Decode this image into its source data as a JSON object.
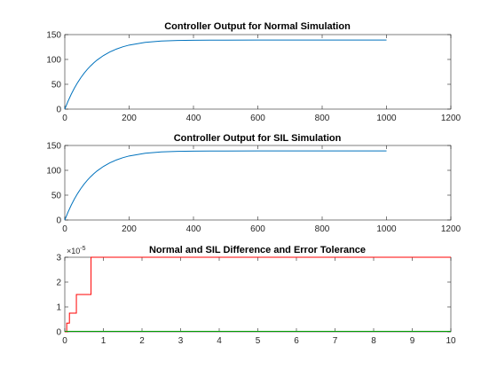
{
  "chart_data": [
    {
      "type": "line",
      "title": "Controller Output for Normal Simulation",
      "xlabel": "",
      "ylabel": "",
      "xlim": [
        0,
        1200
      ],
      "ylim": [
        0,
        150
      ],
      "xticks": [
        0,
        200,
        400,
        600,
        800,
        1000,
        1200
      ],
      "yticks": [
        0,
        50,
        100,
        150
      ],
      "grid": false,
      "series": [
        {
          "color": "#0072BD",
          "x": [
            0,
            10,
            20,
            30,
            40,
            50,
            60,
            70,
            80,
            90,
            100,
            120,
            140,
            160,
            180,
            200,
            250,
            300,
            350,
            400,
            450,
            500,
            600,
            700,
            800,
            900,
            1000
          ],
          "y": [
            0,
            15.8,
            29.9,
            42.4,
            53.5,
            63.4,
            72.2,
            80.0,
            86.9,
            93.1,
            98.6,
            107.8,
            115.0,
            120.8,
            125.3,
            128.9,
            134.4,
            137.0,
            138.1,
            138.6,
            138.8,
            138.9,
            139.0,
            139.0,
            139.0,
            139.0,
            139.0
          ]
        }
      ]
    },
    {
      "type": "line",
      "title": "Controller Output for SIL Simulation",
      "xlabel": "",
      "ylabel": "",
      "xlim": [
        0,
        1200
      ],
      "ylim": [
        0,
        150
      ],
      "xticks": [
        0,
        200,
        400,
        600,
        800,
        1000,
        1200
      ],
      "yticks": [
        0,
        50,
        100,
        150
      ],
      "grid": false,
      "series": [
        {
          "color": "#0072BD",
          "x": [
            0,
            10,
            20,
            30,
            40,
            50,
            60,
            70,
            80,
            90,
            100,
            120,
            140,
            160,
            180,
            200,
            250,
            300,
            350,
            400,
            450,
            500,
            600,
            700,
            800,
            900,
            1000
          ],
          "y": [
            0,
            15.8,
            29.9,
            42.4,
            53.5,
            63.4,
            72.2,
            80.0,
            86.9,
            93.1,
            98.6,
            107.8,
            115.0,
            120.8,
            125.3,
            128.9,
            134.4,
            137.0,
            138.1,
            138.6,
            138.8,
            138.9,
            139.0,
            139.0,
            139.0,
            139.0,
            139.0
          ]
        }
      ]
    },
    {
      "type": "line",
      "title": "Normal and SIL Difference and Error Tolerance",
      "xlabel": "",
      "ylabel": "",
      "y_exponent_label": "×10",
      "y_exponent_power": "-5",
      "xlim": [
        0,
        10
      ],
      "ylim": [
        0,
        3
      ],
      "xticks": [
        0,
        1,
        2,
        3,
        4,
        5,
        6,
        7,
        8,
        9,
        10
      ],
      "yticks": [
        0,
        1,
        2,
        3
      ],
      "grid": false,
      "series": [
        {
          "color": "#FF0000",
          "x": [
            0,
            0.05,
            0.05,
            0.12,
            0.12,
            0.2,
            0.2,
            0.3,
            0.3,
            0.68,
            0.68,
            10
          ],
          "y": [
            0,
            0,
            0.35,
            0.35,
            0.75,
            0.75,
            0.75,
            0.75,
            1.5,
            1.5,
            3.0,
            3.0
          ]
        },
        {
          "color": "#00A000",
          "x": [
            0,
            10
          ],
          "y": [
            0.02,
            0.02
          ]
        }
      ]
    }
  ]
}
